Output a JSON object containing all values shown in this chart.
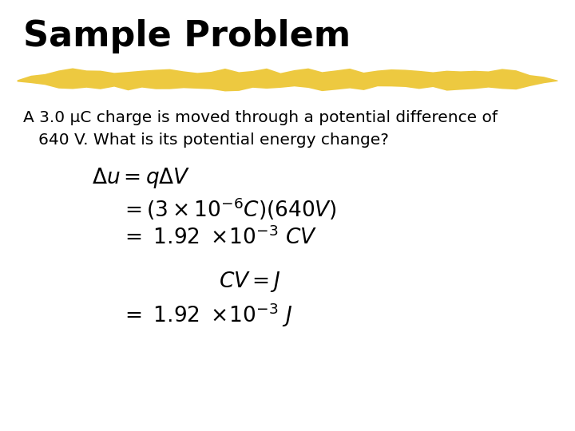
{
  "title": "Sample Problem",
  "title_fontsize": 32,
  "background_color": "#ffffff",
  "highlight_color": "#e8b800",
  "highlight_alpha": 0.75,
  "problem_text_line1": "A 3.0 μC charge is moved through a potential difference of",
  "problem_text_line2": "   640 V. What is its potential energy change?",
  "problem_fontsize": 14.5
}
